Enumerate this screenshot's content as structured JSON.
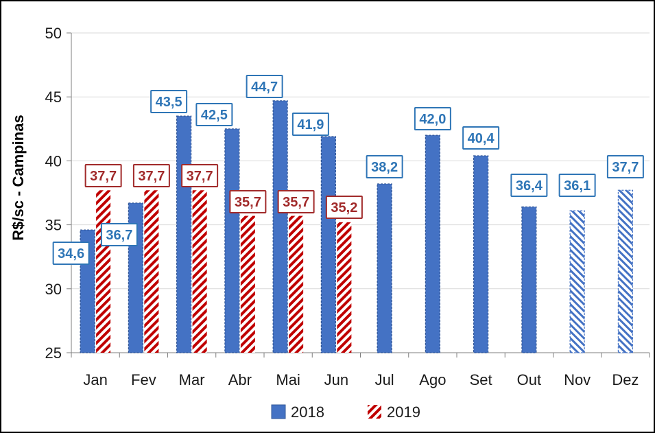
{
  "chart_data": {
    "type": "bar",
    "categories": [
      "Jan",
      "Fev",
      "Mar",
      "Abr",
      "Mai",
      "Jun",
      "Jul",
      "Ago",
      "Set",
      "Out",
      "Nov",
      "Dez"
    ],
    "series": [
      {
        "name": "2018",
        "values": [
          34.6,
          36.7,
          43.5,
          42.5,
          44.7,
          41.9,
          38.2,
          42.0,
          40.4,
          36.4,
          36.1,
          37.7
        ],
        "labels": [
          "34,6",
          "36,7",
          "43,5",
          "42,5",
          "44,7",
          "41,9",
          "38,2",
          "42,0",
          "40,4",
          "36,4",
          "36,1",
          "37,7"
        ],
        "color": "#4472C4",
        "label_color": "#2E75B6",
        "hatched_categories": [
          "Nov",
          "Dez"
        ]
      },
      {
        "name": "2019",
        "values": [
          37.7,
          37.7,
          37.7,
          35.7,
          35.7,
          35.2,
          null,
          null,
          null,
          null,
          null,
          null
        ],
        "labels": [
          "37,7",
          "37,7",
          "37,7",
          "35,7",
          "35,7",
          "35,2",
          "",
          "",
          "",
          "",
          "",
          ""
        ],
        "color": "#C00000",
        "label_color": "#A12A2A",
        "hatched_categories": [
          "Jan",
          "Fev",
          "Mar",
          "Abr",
          "Mai",
          "Jun"
        ]
      }
    ],
    "title": "",
    "xlabel": "",
    "ylabel": "R$/sc - Campinas",
    "ylim": [
      25,
      50
    ],
    "yticks": [
      25,
      30,
      35,
      40,
      45,
      50
    ],
    "grid": true,
    "legend_position": "bottom"
  }
}
